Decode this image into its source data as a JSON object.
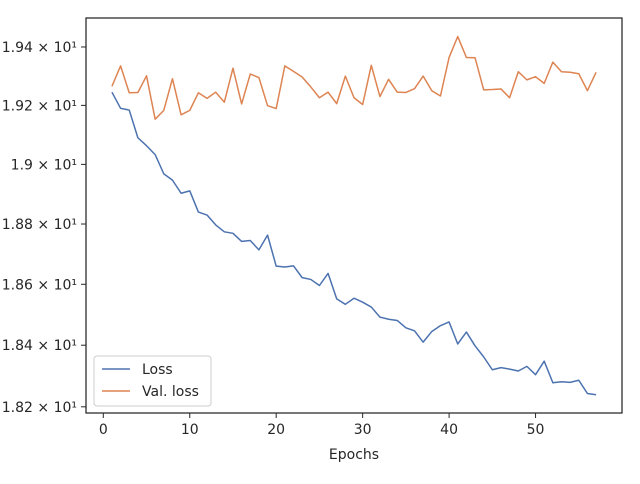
{
  "chart_data": {
    "type": "line",
    "title": "",
    "xlabel": "Epochs",
    "ylabel": "",
    "xlim": [
      -2,
      60
    ],
    "ylim": [
      18.18,
      19.5
    ],
    "x_ticks": [
      {
        "value": 0,
        "label": "0"
      },
      {
        "value": 10,
        "label": "10"
      },
      {
        "value": 20,
        "label": "20"
      },
      {
        "value": 30,
        "label": "30"
      },
      {
        "value": 40,
        "label": "40"
      },
      {
        "value": 50,
        "label": "50"
      }
    ],
    "y_ticks": [
      {
        "value": 18.2,
        "label": "1.82 × 10¹"
      },
      {
        "value": 18.4,
        "label": "1.84 × 10¹"
      },
      {
        "value": 18.6,
        "label": "1.86 × 10¹"
      },
      {
        "value": 18.8,
        "label": "1.88 × 10¹"
      },
      {
        "value": 19.0,
        "label": "1.9 × 10¹"
      },
      {
        "value": 19.2,
        "label": "1.92 × 10¹"
      },
      {
        "value": 19.4,
        "label": "1.94 × 10¹"
      }
    ],
    "y_scale": "log",
    "grid": false,
    "legend_position": "lower-left",
    "x": [
      1,
      2,
      3,
      4,
      5,
      6,
      7,
      8,
      9,
      10,
      11,
      12,
      13,
      14,
      15,
      16,
      17,
      18,
      19,
      20,
      21,
      22,
      23,
      24,
      25,
      26,
      27,
      28,
      29,
      30,
      31,
      32,
      33,
      34,
      35,
      36,
      37,
      38,
      39,
      40,
      41,
      42,
      43,
      44,
      45,
      46,
      47,
      48,
      49,
      50,
      51,
      52,
      53,
      54,
      55,
      56,
      57
    ],
    "series": [
      {
        "name": "Loss",
        "color": "#4c72b0",
        "values": [
          19.245,
          19.19,
          19.184,
          19.09,
          19.063,
          19.033,
          18.968,
          18.947,
          18.903,
          18.911,
          18.84,
          18.83,
          18.797,
          18.774,
          18.769,
          18.742,
          18.745,
          18.714,
          18.763,
          18.66,
          18.657,
          18.661,
          18.622,
          18.616,
          18.596,
          18.636,
          18.552,
          18.534,
          18.554,
          18.541,
          18.525,
          18.492,
          18.485,
          18.481,
          18.457,
          18.447,
          18.41,
          18.445,
          18.464,
          18.476,
          18.404,
          18.443,
          18.398,
          18.362,
          18.32,
          18.327,
          18.322,
          18.316,
          18.331,
          18.304,
          18.348,
          18.278,
          18.281,
          18.279,
          18.286,
          18.243,
          18.239
        ]
      },
      {
        "name": "Val. loss",
        "color": "#dd8452",
        "values": [
          19.265,
          19.335,
          19.243,
          19.244,
          19.301,
          19.153,
          19.183,
          19.291,
          19.168,
          19.183,
          19.243,
          19.224,
          19.245,
          19.211,
          19.327,
          19.205,
          19.307,
          19.295,
          19.199,
          19.189,
          19.335,
          19.316,
          19.297,
          19.263,
          19.226,
          19.245,
          19.206,
          19.3,
          19.226,
          19.203,
          19.337,
          19.23,
          19.289,
          19.245,
          19.244,
          19.257,
          19.3,
          19.25,
          19.232,
          19.364,
          19.436,
          19.364,
          19.363,
          19.253,
          19.254,
          19.256,
          19.226,
          19.315,
          19.287,
          19.298,
          19.275,
          19.348,
          19.315,
          19.313,
          19.308,
          19.25,
          19.313
        ]
      }
    ]
  }
}
